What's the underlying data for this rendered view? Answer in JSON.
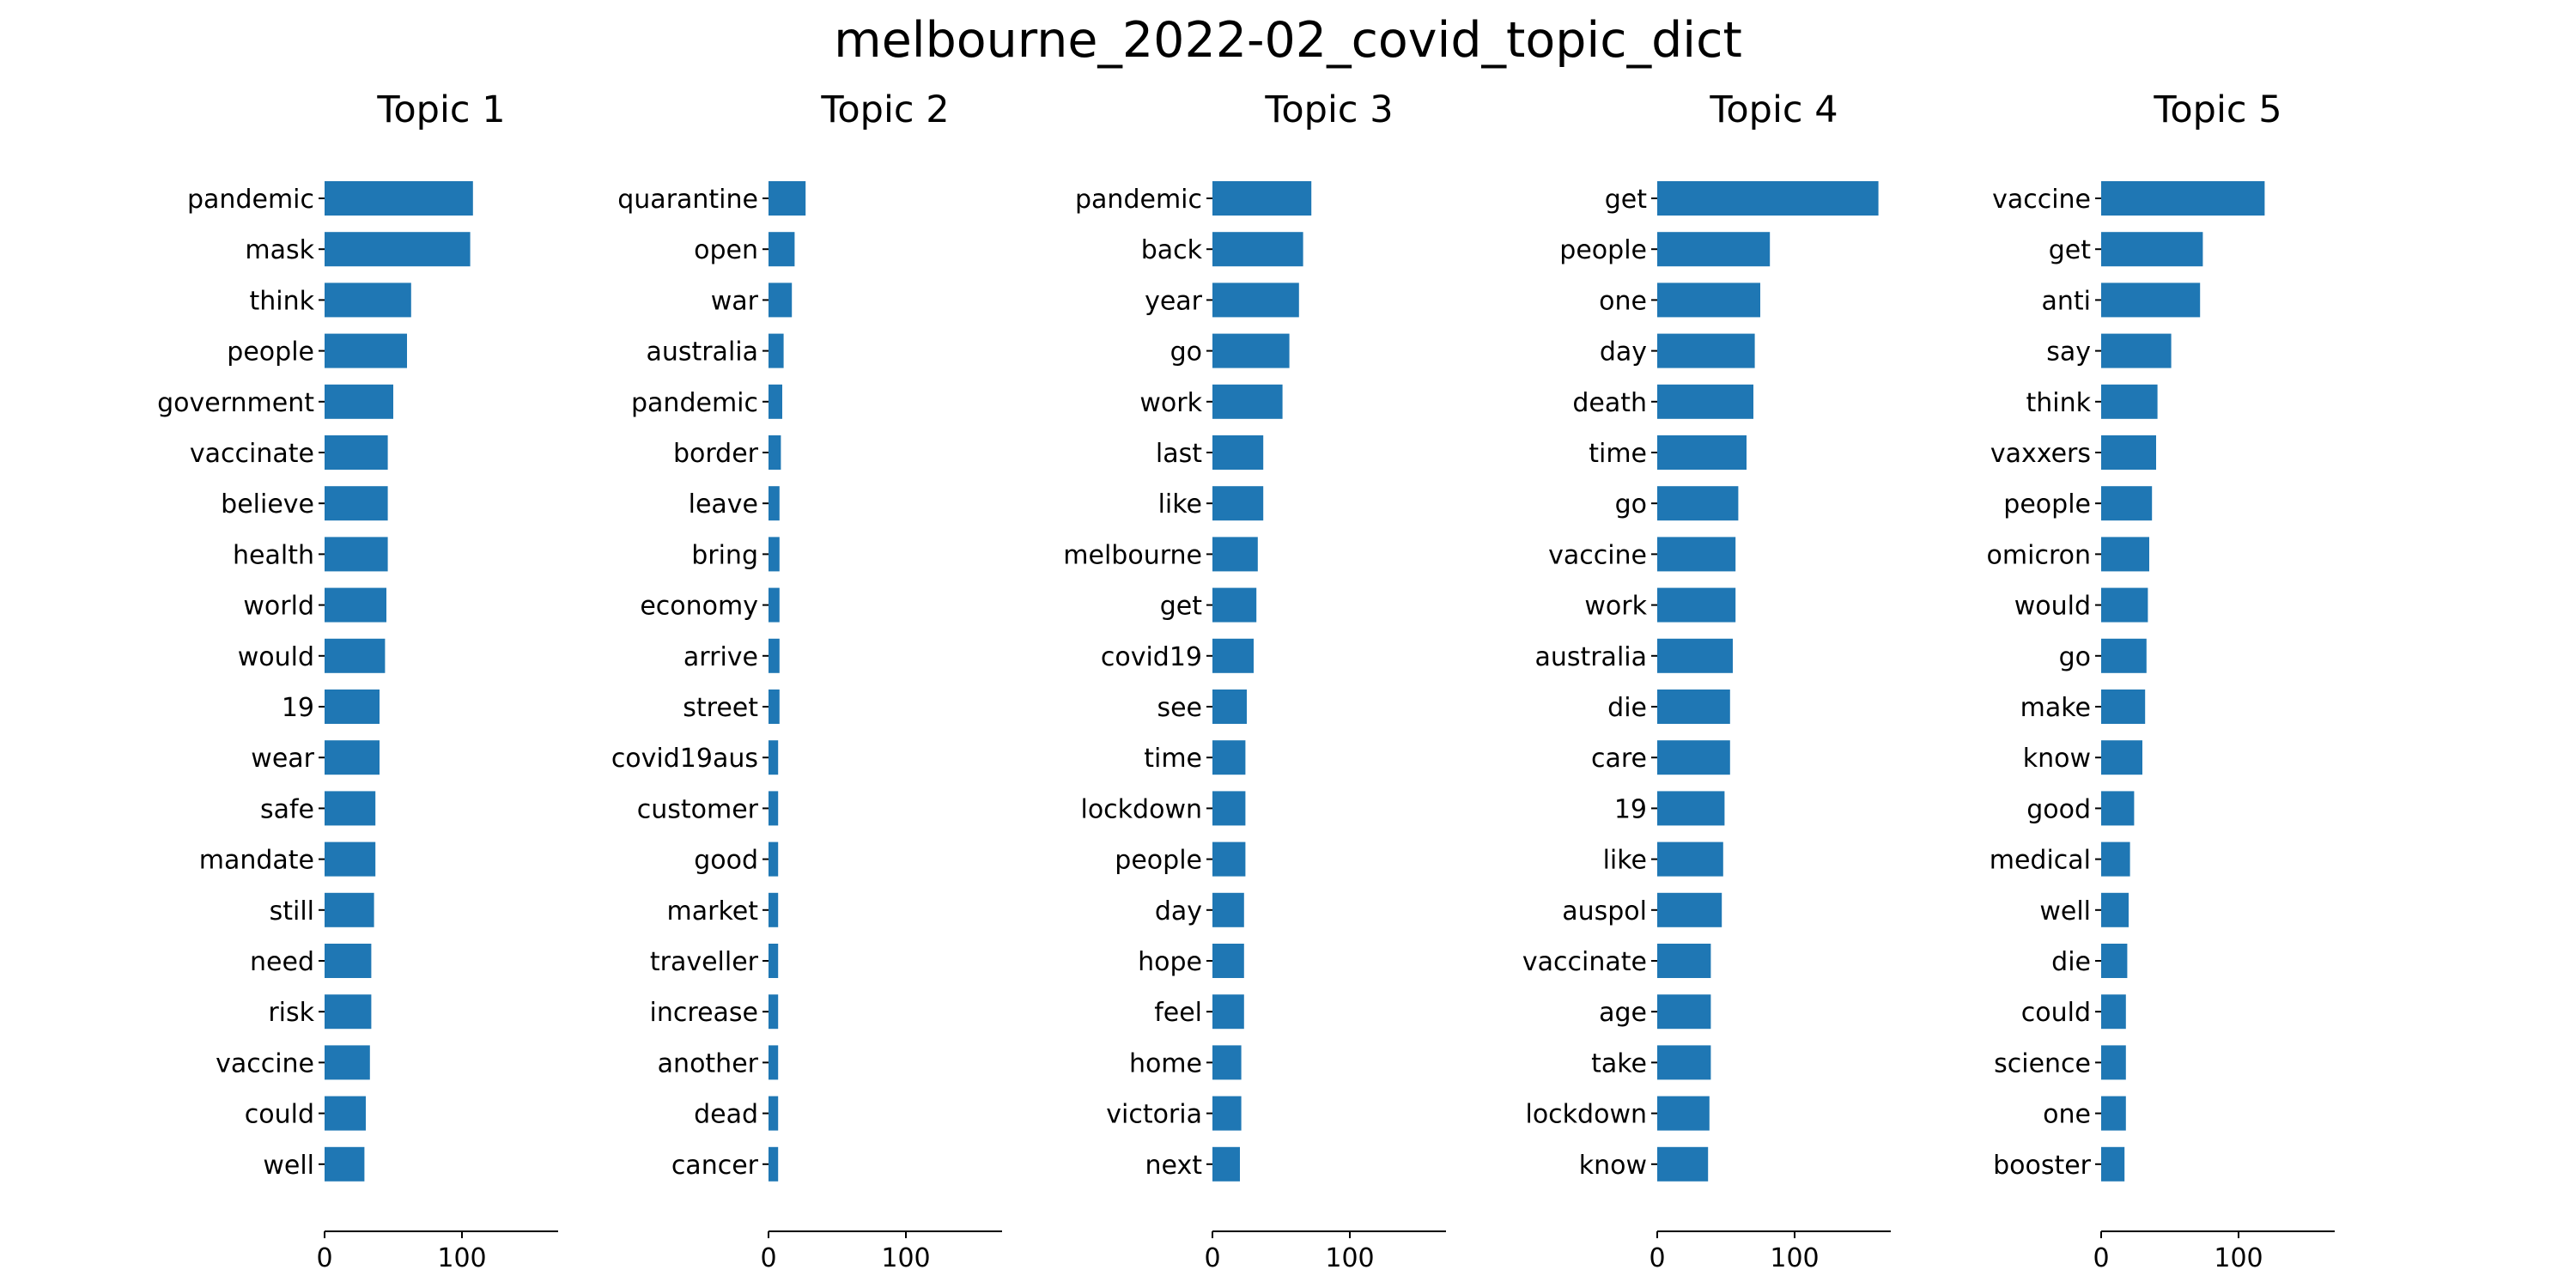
{
  "figure": {
    "title": "melbourne_2022-02_covid_topic_dict"
  },
  "colors": {
    "bar": "#1f77b4",
    "background": "#ffffff",
    "text": "#000000"
  },
  "chart_data": [
    {
      "type": "bar",
      "orientation": "horizontal",
      "title": "Topic 1",
      "xlabel": "",
      "ylabel": "",
      "xlim": [
        0,
        170
      ],
      "xticks": [
        0,
        100
      ],
      "grid": false,
      "legend": "none",
      "categories": [
        "pandemic",
        "mask",
        "think",
        "people",
        "government",
        "vaccinate",
        "believe",
        "health",
        "world",
        "would",
        "19",
        "wear",
        "safe",
        "mandate",
        "still",
        "need",
        "risk",
        "vaccine",
        "could",
        "well"
      ],
      "values": [
        108,
        106,
        63,
        60,
        50,
        46,
        46,
        46,
        45,
        44,
        40,
        40,
        37,
        37,
        36,
        34,
        34,
        33,
        30,
        29
      ]
    },
    {
      "type": "bar",
      "orientation": "horizontal",
      "title": "Topic 2",
      "xlabel": "",
      "ylabel": "",
      "xlim": [
        0,
        170
      ],
      "xticks": [
        0,
        100
      ],
      "grid": false,
      "legend": "none",
      "categories": [
        "quarantine",
        "open",
        "war",
        "australia",
        "pandemic",
        "border",
        "leave",
        "bring",
        "economy",
        "arrive",
        "street",
        "covid19aus",
        "customer",
        "good",
        "market",
        "traveller",
        "increase",
        "another",
        "dead",
        "cancer"
      ],
      "values": [
        27,
        19,
        17,
        11,
        10,
        9,
        8,
        8,
        8,
        8,
        8,
        7,
        7,
        7,
        7,
        7,
        7,
        7,
        7,
        7
      ]
    },
    {
      "type": "bar",
      "orientation": "horizontal",
      "title": "Topic 3",
      "xlabel": "",
      "ylabel": "",
      "xlim": [
        0,
        170
      ],
      "xticks": [
        0,
        100
      ],
      "grid": false,
      "legend": "none",
      "categories": [
        "pandemic",
        "back",
        "year",
        "go",
        "work",
        "last",
        "like",
        "melbourne",
        "get",
        "covid19",
        "see",
        "time",
        "lockdown",
        "people",
        "day",
        "hope",
        "feel",
        "home",
        "victoria",
        "next"
      ],
      "values": [
        72,
        66,
        63,
        56,
        51,
        37,
        37,
        33,
        32,
        30,
        25,
        24,
        24,
        24,
        23,
        23,
        23,
        21,
        21,
        20
      ]
    },
    {
      "type": "bar",
      "orientation": "horizontal",
      "title": "Topic 4",
      "xlabel": "",
      "ylabel": "",
      "xlim": [
        0,
        170
      ],
      "xticks": [
        0,
        100
      ],
      "grid": false,
      "legend": "none",
      "categories": [
        "get",
        "people",
        "one",
        "day",
        "death",
        "time",
        "go",
        "vaccine",
        "work",
        "australia",
        "die",
        "care",
        "19",
        "like",
        "auspol",
        "vaccinate",
        "age",
        "take",
        "lockdown",
        "know"
      ],
      "values": [
        161,
        82,
        75,
        71,
        70,
        65,
        59,
        57,
        57,
        55,
        53,
        53,
        49,
        48,
        47,
        39,
        39,
        39,
        38,
        37
      ]
    },
    {
      "type": "bar",
      "orientation": "horizontal",
      "title": "Topic 5",
      "xlabel": "",
      "ylabel": "",
      "xlim": [
        0,
        170
      ],
      "xticks": [
        0,
        100
      ],
      "grid": false,
      "legend": "none",
      "categories": [
        "vaccine",
        "get",
        "anti",
        "say",
        "think",
        "vaxxers",
        "people",
        "omicron",
        "would",
        "go",
        "make",
        "know",
        "good",
        "medical",
        "well",
        "die",
        "could",
        "science",
        "one",
        "booster"
      ],
      "values": [
        119,
        74,
        72,
        51,
        41,
        40,
        37,
        35,
        34,
        33,
        32,
        30,
        24,
        21,
        20,
        19,
        18,
        18,
        18,
        17
      ]
    }
  ]
}
